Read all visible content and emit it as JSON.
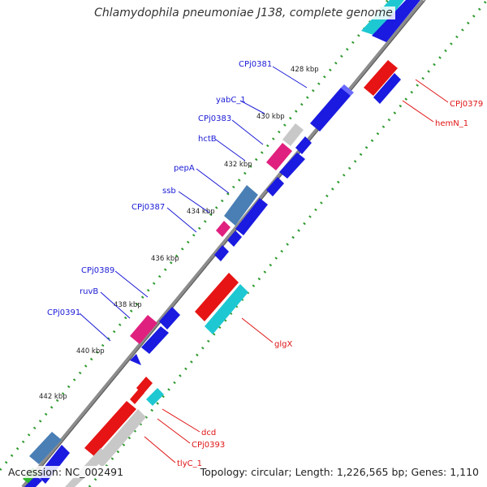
{
  "title": "Chlamydophila pneumoniae J138, complete genome",
  "footer": {
    "accession": "Accession: NC_002491",
    "summary": "Topology: circular; Length: 1,226,565 bp; Genes: 1,110"
  },
  "colors": {
    "backbone": "#8c8c8c",
    "tick_dot": "#2e9a2e",
    "gene_blue": "#1a1ae0",
    "gene_red": "#e61414",
    "gene_pink": "#e0207e",
    "gene_steel": "#4a7fb5",
    "gene_cyan": "#1ec8d2",
    "gene_grey": "#c8c8c8",
    "gene_green": "#2fb52f",
    "label_forward": "#1a1ad6",
    "label_reverse": "#e01414"
  },
  "kbp_markers": [
    {
      "label": "428 kbp"
    },
    {
      "label": "430 kbp"
    },
    {
      "label": "432 kbp"
    },
    {
      "label": "434 kbp"
    },
    {
      "label": "436 kbp"
    },
    {
      "label": "438 kbp"
    },
    {
      "label": "440 kbp"
    },
    {
      "label": "442 kbp"
    }
  ],
  "forward_labels": [
    {
      "text": "CPj0381"
    },
    {
      "text": "yabC_1"
    },
    {
      "text": "CPj0383"
    },
    {
      "text": "hctB"
    },
    {
      "text": "pepA"
    },
    {
      "text": "ssb"
    },
    {
      "text": "CPj0387"
    },
    {
      "text": "CPj0389"
    },
    {
      "text": "ruvB"
    },
    {
      "text": "CPj0391"
    }
  ],
  "reverse_labels": [
    {
      "text": "CPj0379"
    },
    {
      "text": "hemN_1"
    },
    {
      "text": "glgX"
    },
    {
      "text": "dcd"
    },
    {
      "text": "CPj0393"
    },
    {
      "text": "tlyC_1"
    }
  ]
}
